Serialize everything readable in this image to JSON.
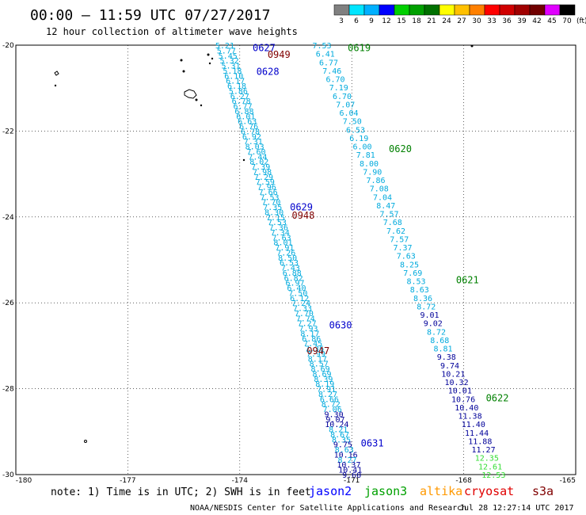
{
  "title": "00:00 – 11:59 UTC 07/27/2017",
  "subtitle": "12 hour collection of altimeter wave heights",
  "scale": {
    "colors": [
      "#808080",
      "#00e5ff",
      "#00b0ff",
      "#0000ff",
      "#00d000",
      "#00a000",
      "#007000",
      "#ffff00",
      "#ffc000",
      "#ff8000",
      "#ff0000",
      "#d00000",
      "#a00000",
      "#700000",
      "#e000ff",
      "#000000"
    ],
    "labels": [
      "3",
      "6",
      "9",
      "12",
      "15",
      "18",
      "21",
      "24",
      "27",
      "30",
      "33",
      "36",
      "39",
      "42",
      "45",
      "70",
      "(ft)"
    ]
  },
  "axes": {
    "lon_min": -180,
    "lon_max": -165,
    "lat_min": -30,
    "lat_max": -20,
    "lat_ticks": [
      "-20",
      "-22",
      "-24",
      "-26",
      "-28",
      "-30"
    ],
    "lon_ticks": [
      "-180",
      "-177",
      "-174",
      "-171",
      "-168",
      "-165"
    ]
  },
  "tracks": [
    {
      "satellite": "jason2",
      "color": "#00aadd",
      "start": [
        -174.4,
        -20.0
      ],
      "end": [
        -171.0,
        -30.0
      ],
      "values": [
        "5.21",
        "5.77",
        "5.45",
        "5.32",
        "5.31",
        "5.18",
        "6.10",
        "6.17",
        "6.18",
        "5.86",
        "6.27",
        "6.78",
        "6.77",
        "6.88",
        "6.01",
        "6.63",
        "6.76",
        "6.78",
        "6.92",
        "7.31",
        "8.03",
        "7.60",
        "7.44",
        "8.02",
        "7.39",
        "7.98",
        "7.29",
        "7.59",
        "7.96",
        "7.66",
        "7.53",
        "7.70",
        "7.35",
        "8.30",
        "7.15",
        "7.53",
        "7.36",
        "7.34",
        "7.63",
        "8.01",
        "7.91",
        "7.26",
        "8.50",
        "6.53",
        "7.43",
        "6.88",
        "6.82",
        "6.97",
        "6.40",
        "7.50",
        "6.12",
        "7.24",
        "7.33",
        "7.70",
        "7.74",
        "7.27",
        "7.93",
        "8.17",
        "6.86",
        "7.45",
        "7.36",
        "7.99",
        "8.17",
        "8.57",
        "8.69",
        "8.69",
        "8.39",
        "8.19",
        "7.91",
        "8.27",
        "6.66",
        "8.72",
        "7.06",
        "9.30",
        "9.07",
        "10.24",
        "8.21",
        "8.67",
        "8.35",
        "9.75",
        "8.63",
        "10.16",
        "8.27",
        "10.37",
        "10.41",
        "9.60"
      ]
    },
    {
      "satellite": "jason3",
      "color": "#00aadd",
      "start": [
        -171.8,
        -20.0
      ],
      "end": [
        -167.2,
        -30.0
      ],
      "values": [
        "7.53",
        "6.41",
        "6.77",
        "7.46",
        "6.70",
        "7.19",
        "6.70",
        "7.07",
        "6.04",
        "7.50",
        "6.53",
        "6.19",
        "6.00",
        "7.81",
        "8.00",
        "7.90",
        "7.86",
        "7.08",
        "7.04",
        "8.47",
        "7.57",
        "7.68",
        "7.62",
        "7.57",
        "7.37",
        "7.63",
        "8.25",
        "7.69",
        "8.53",
        "8.63",
        "8.36",
        "8.72",
        "9.01",
        "9.02",
        "8.72",
        "8.68",
        "8.81",
        "9.38",
        "9.74",
        "10.21",
        "10.32",
        "10.01",
        "10.76",
        "10.40",
        "11.38",
        "11.40",
        "11.44",
        "11.88",
        "11.27",
        "12.35",
        "12.61",
        "12.53"
      ]
    }
  ],
  "pass_times": [
    {
      "label": "0627",
      "lon": -173.35,
      "lat": -20.05,
      "color": "#0000cc"
    },
    {
      "label": "0949",
      "lon": -172.95,
      "lat": -20.2,
      "color": "#800000"
    },
    {
      "label": "0628",
      "lon": -173.25,
      "lat": -20.6,
      "color": "#0000cc"
    },
    {
      "label": "0619",
      "lon": -170.8,
      "lat": -20.05,
      "color": "#008000"
    },
    {
      "label": "0620",
      "lon": -169.7,
      "lat": -22.4,
      "color": "#008000"
    },
    {
      "label": "0629",
      "lon": -172.35,
      "lat": -23.75,
      "color": "#0000cc"
    },
    {
      "label": "0948",
      "lon": -172.3,
      "lat": -23.95,
      "color": "#800000"
    },
    {
      "label": "0621",
      "lon": -167.9,
      "lat": -25.45,
      "color": "#008000"
    },
    {
      "label": "0630",
      "lon": -171.3,
      "lat": -26.5,
      "color": "#0000cc"
    },
    {
      "label": "0947",
      "lon": -171.9,
      "lat": -27.1,
      "color": "#800000"
    },
    {
      "label": "0622",
      "lon": -167.1,
      "lat": -28.2,
      "color": "#008000"
    },
    {
      "label": "0631",
      "lon": -170.45,
      "lat": -29.25,
      "color": "#0000cc"
    }
  ],
  "note": "note: 1) Time is in UTC; 2) SWH is in feet",
  "legend": [
    {
      "name": "jason2",
      "color": "#0000ff"
    },
    {
      "name": "jason3",
      "color": "#00a000"
    },
    {
      "name": "altika",
      "color": "#ff9900"
    },
    {
      "name": "cryosat",
      "color": "#e00000"
    },
    {
      "name": "s3a",
      "color": "#800000"
    }
  ],
  "credit": "NOAA/NESDIS Center for Satellite Applications and Research",
  "timestamp": "Jul 28 12:27:14 UTC 2017"
}
